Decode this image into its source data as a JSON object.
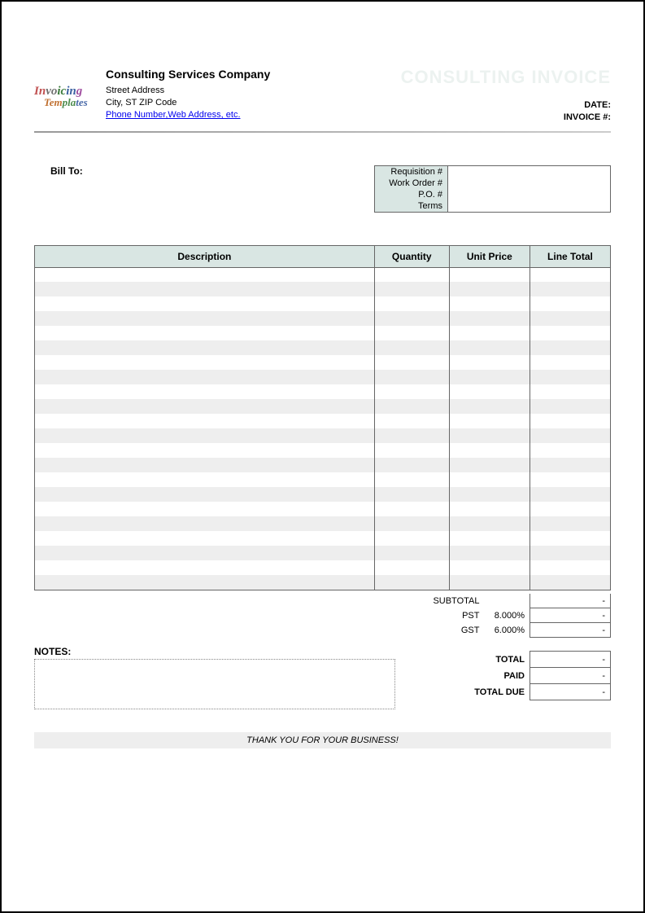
{
  "header": {
    "company_name": "Consulting Services Company",
    "street": "Street Address",
    "city_line": "City, ST  ZIP Code",
    "contact_link": "Phone Number,Web Address, etc.",
    "doc_title": "CONSULTING INVOICE",
    "date_label": "DATE:",
    "invoice_num_label": "INVOICE #:",
    "logo_main": "Invoicing",
    "logo_sub": "Templates"
  },
  "bill": {
    "label": "Bill To:",
    "order_fields": {
      "requisition": "Requisition #",
      "work_order": "Work Order #",
      "po": "P.O. #",
      "terms": "Terms"
    }
  },
  "items": {
    "columns": {
      "description": "Description",
      "quantity": "Quantity",
      "unit_price": "Unit Price",
      "line_total": "Line Total"
    },
    "row_count": 22
  },
  "totals": {
    "subtotal_label": "SUBTOTAL",
    "pst_label": "PST",
    "pst_pct": "8.000%",
    "gst_label": "GST",
    "gst_pct": "6.000%",
    "total_label": "TOTAL",
    "paid_label": "PAID",
    "total_due_label": "TOTAL DUE",
    "dash": "-"
  },
  "notes": {
    "label": "NOTES:"
  },
  "footer": {
    "thanks": "THANK YOU FOR YOUR BUSINESS!"
  },
  "colors": {
    "header_bg": "#d9e6e3",
    "stripe": "#eeeeee",
    "title_ghost": "#ecf2f0",
    "link": "#0000ee",
    "border": "#666666"
  }
}
